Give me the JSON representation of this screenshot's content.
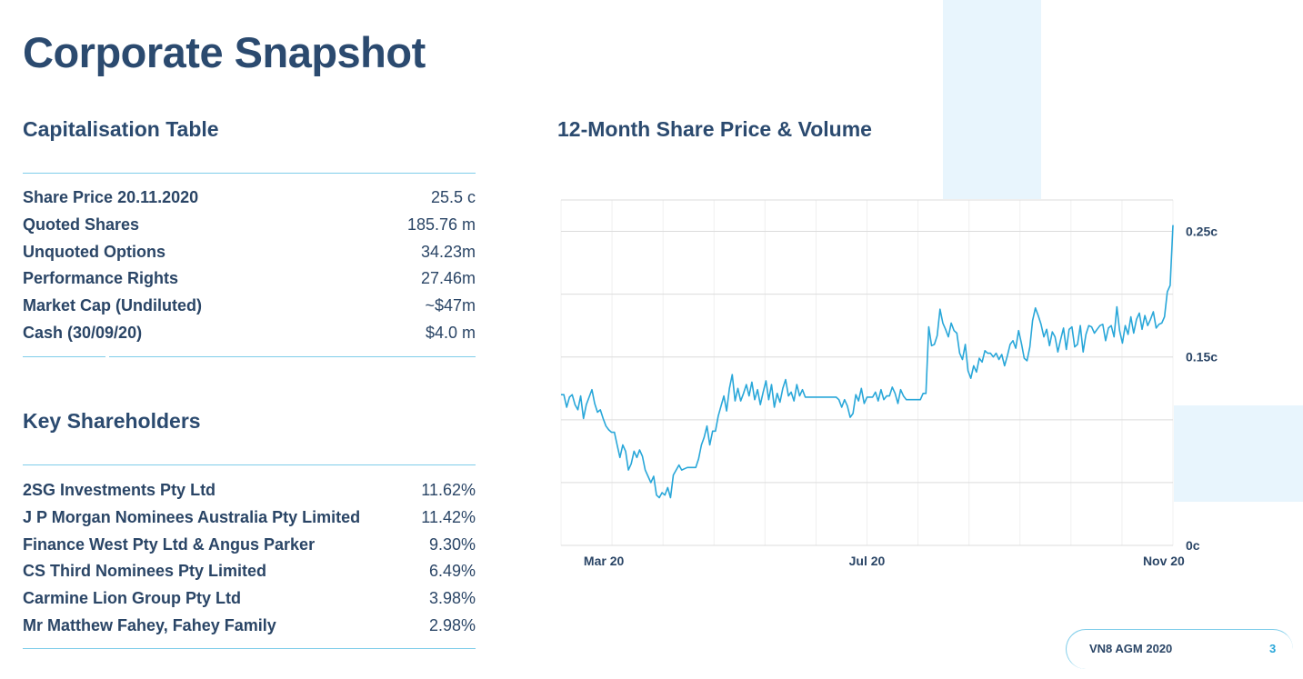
{
  "page": {
    "title": "Corporate Snapshot",
    "footer_label": "VN8 AGM 2020",
    "page_number": "3"
  },
  "capitalisation": {
    "title": "Capitalisation Table",
    "rows": [
      {
        "label": "Share Price 20.11.2020",
        "value": "25.5 c"
      },
      {
        "label": "Quoted Shares",
        "value": "185.76 m"
      },
      {
        "label": "Unquoted Options",
        "value": "34.23m"
      },
      {
        "label": "Performance Rights",
        "value": "27.46m"
      },
      {
        "label": "Market Cap (Undiluted)",
        "value": "~$47m"
      },
      {
        "label": "Cash (30/09/20)",
        "value": "$4.0 m"
      }
    ]
  },
  "shareholders": {
    "title": "Key Shareholders",
    "rows": [
      {
        "label": "2SG Investments Pty Ltd",
        "value": "11.62%"
      },
      {
        "label": "J P Morgan Nominees Australia Pty Limited",
        "value": "11.42%"
      },
      {
        "label": "Finance West Pty Ltd & Angus Parker",
        "value": "9.30%"
      },
      {
        "label": "CS Third Nominees Pty Limited",
        "value": "6.49%"
      },
      {
        "label": "Carmine Lion Group Pty Ltd",
        "value": "3.98%"
      },
      {
        "label": "Mr Matthew Fahey, Fahey Family",
        "value": "2.98%"
      }
    ]
  },
  "colors": {
    "accent": "#29a7d9",
    "title": "#2b4a6f",
    "rule": "#7fcdea",
    "decor": "#e8f5fd"
  },
  "chart_data": {
    "type": "line",
    "title": "12-Month Share Price & Volume",
    "x_tick_labels": [
      "Mar 20",
      "Jul 20",
      "Nov 20"
    ],
    "y_tick_labels": [
      "0c",
      "0.15c",
      "0.25c"
    ],
    "ylim": [
      0,
      0.275
    ],
    "y_ticks": [
      0,
      0.15,
      0.25
    ],
    "grid": true,
    "series": [
      {
        "values": [
          0.12,
          0.12,
          0.11,
          0.118,
          0.12,
          0.112,
          0.108,
          0.119,
          0.101,
          0.112,
          0.118,
          0.124,
          0.113,
          0.106,
          0.108,
          0.101,
          0.095,
          0.092,
          0.09,
          0.09,
          0.08,
          0.07,
          0.08,
          0.075,
          0.06,
          0.065,
          0.075,
          0.07,
          0.076,
          0.071,
          0.06,
          0.055,
          0.05,
          0.055,
          0.04,
          0.038,
          0.042,
          0.04,
          0.046,
          0.038,
          0.056,
          0.06,
          0.064,
          0.06,
          0.061,
          0.062,
          0.062,
          0.062,
          0.062,
          0.069,
          0.08,
          0.086,
          0.095,
          0.08,
          0.091,
          0.091,
          0.103,
          0.111,
          0.119,
          0.107,
          0.125,
          0.136,
          0.115,
          0.125,
          0.115,
          0.121,
          0.128,
          0.119,
          0.13,
          0.116,
          0.124,
          0.112,
          0.122,
          0.131,
          0.116,
          0.128,
          0.11,
          0.121,
          0.114,
          0.125,
          0.132,
          0.119,
          0.122,
          0.115,
          0.128,
          0.119,
          0.124,
          0.118,
          0.118,
          0.118,
          0.118,
          0.118,
          0.118,
          0.118,
          0.118,
          0.118,
          0.118,
          0.118,
          0.118,
          0.116,
          0.11,
          0.116,
          0.111,
          0.102,
          0.105,
          0.12,
          0.115,
          0.125,
          0.113,
          0.118,
          0.118,
          0.118,
          0.122,
          0.115,
          0.124,
          0.116,
          0.119,
          0.119,
          0.126,
          0.121,
          0.113,
          0.124,
          0.119,
          0.116,
          0.116,
          0.116,
          0.116,
          0.116,
          0.116,
          0.121,
          0.121,
          0.174,
          0.159,
          0.16,
          0.167,
          0.188,
          0.177,
          0.172,
          0.166,
          0.177,
          0.171,
          0.169,
          0.153,
          0.148,
          0.16,
          0.139,
          0.133,
          0.143,
          0.138,
          0.149,
          0.146,
          0.155,
          0.153,
          0.153,
          0.15,
          0.153,
          0.148,
          0.152,
          0.143,
          0.151,
          0.16,
          0.163,
          0.157,
          0.171,
          0.161,
          0.149,
          0.147,
          0.158,
          0.179,
          0.189,
          0.183,
          0.176,
          0.166,
          0.172,
          0.159,
          0.17,
          0.166,
          0.154,
          0.164,
          0.173,
          0.156,
          0.172,
          0.174,
          0.158,
          0.16,
          0.175,
          0.154,
          0.168,
          0.175,
          0.174,
          0.169,
          0.172,
          0.175,
          0.176,
          0.163,
          0.173,
          0.175,
          0.166,
          0.19,
          0.171,
          0.161,
          0.175,
          0.168,
          0.182,
          0.169,
          0.18,
          0.185,
          0.172,
          0.183,
          0.175,
          0.18,
          0.186,
          0.173,
          0.176,
          0.177,
          0.182,
          0.202,
          0.207,
          0.255
        ]
      }
    ]
  }
}
